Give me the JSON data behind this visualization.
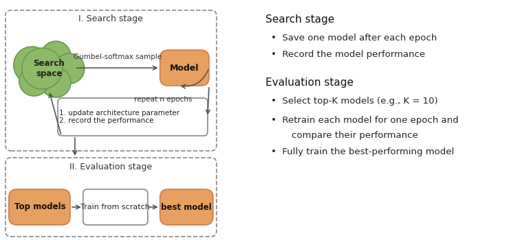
{
  "fig_width": 7.4,
  "fig_height": 3.5,
  "dpi": 100,
  "bg_color": "#ffffff",
  "orange_color": "#E8A060",
  "orange_edge": "#C8804A",
  "green_color": "#8DB96A",
  "green_edge": "#6A9A4A",
  "box_edge": "#888888",
  "arrow_color": "#555555",
  "dashed_box_color": "#888888",
  "search_stage_label": "I. Search stage",
  "eval_stage_label": "II. Evaluation stage",
  "search_space_text": "Search\nspace",
  "model_text": "Model",
  "update_text": "1. update architecture parameter\n2. record the performance",
  "gumbel_label": "Gumbel-softmax sample",
  "repeat_label": "repeat n epochs",
  "top_models_text": "Top models",
  "train_scratch_text": "Train from scratch",
  "best_model_text": "best model",
  "right_title1": "Search stage",
  "right_bullet1": "Save one model after each epoch",
  "right_bullet2": "Record the model performance",
  "right_title2": "Evaluation stage",
  "right_bullet3": "Select top-K models (e.g., K = 10)",
  "right_bullet4": "Retrain each model for one epoch and\ncompare their performance",
  "right_bullet5": "Fully train the best-performing model"
}
